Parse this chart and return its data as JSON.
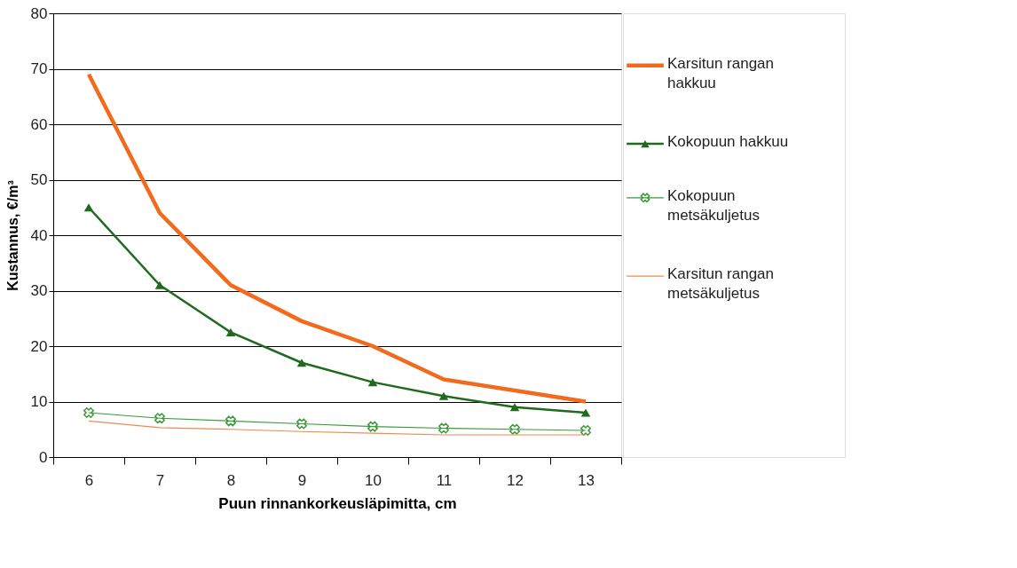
{
  "chart_data": {
    "type": "line",
    "xlabel": "Puun rinnankorkeusläpimitta, cm",
    "ylabel": "Kustannus, €/m³",
    "categories": [
      "6",
      "7",
      "8",
      "9",
      "10",
      "11",
      "12",
      "13"
    ],
    "ylim": [
      0,
      80
    ],
    "yticks": [
      0,
      10,
      20,
      30,
      40,
      50,
      60,
      70,
      80
    ],
    "grid": "y",
    "legend": "right",
    "series": [
      {
        "name": "Karsitun rangan hakkuu",
        "color": "#f26b1d",
        "marker": "none",
        "values": [
          69,
          44,
          31,
          24.5,
          20,
          14,
          12,
          10
        ]
      },
      {
        "name": "Kokopuun hakkuu",
        "color": "#1e6b1e",
        "marker": "triangle",
        "values": [
          45,
          31,
          22.5,
          17,
          13.5,
          11,
          9,
          8
        ]
      },
      {
        "name": "Kokopuun metsäkuljetus",
        "color": "#3a9a3a",
        "marker": "cross",
        "values": [
          8,
          7,
          6.5,
          6,
          5.5,
          5.2,
          5,
          4.8
        ]
      },
      {
        "name": "Karsitun rangan metsäkuljetus",
        "color": "#f08a50",
        "marker": "none",
        "values": [
          6.5,
          5.3,
          5,
          4.6,
          4.3,
          4,
          4,
          4
        ]
      }
    ]
  }
}
